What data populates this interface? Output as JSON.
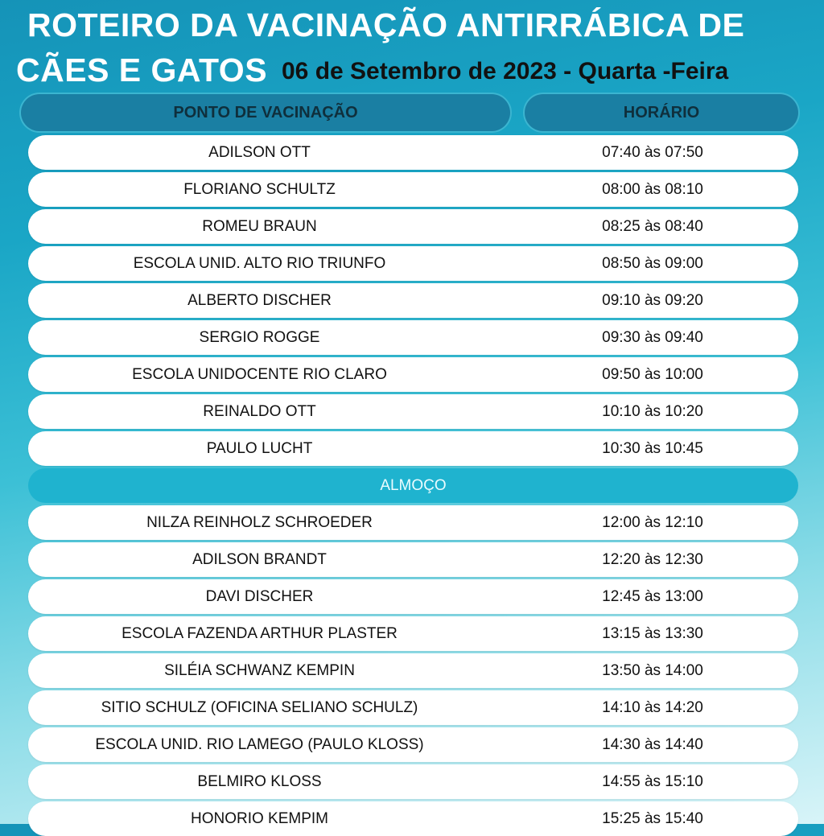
{
  "header": {
    "title_line1": "ROTEIRO DA VACINAÇÃO ANTIRRÁBICA DE",
    "title_line2": "CÃES E GATOS",
    "date": "06 de Setembro de 2023 - Quarta -Feira"
  },
  "table": {
    "col_location": "PONTO DE VACINAÇÃO",
    "col_time": "HORÁRIO",
    "morning": [
      {
        "name": "ADILSON OTT",
        "time": "07:40 às 07:50"
      },
      {
        "name": "FLORIANO SCHULTZ",
        "time": "08:00 às 08:10"
      },
      {
        "name": "ROMEU BRAUN",
        "time": "08:25 às 08:40"
      },
      {
        "name": "ESCOLA UNID. ALTO RIO TRIUNFO",
        "time": "08:50 às 09:00"
      },
      {
        "name": "ALBERTO DISCHER",
        "time": "09:10 às 09:20"
      },
      {
        "name": "SERGIO ROGGE",
        "time": "09:30 às 09:40"
      },
      {
        "name": "ESCOLA UNIDOCENTE RIO CLARO",
        "time": "09:50 às 10:00"
      },
      {
        "name": "REINALDO OTT",
        "time": "10:10 às 10:20"
      },
      {
        "name": "PAULO LUCHT",
        "time": "10:30 às 10:45"
      }
    ],
    "lunch_label": "ALMOÇO",
    "afternoon": [
      {
        "name": "NILZA REINHOLZ SCHROEDER",
        "time": "12:00 às 12:10"
      },
      {
        "name": "ADILSON BRANDT",
        "time": "12:20 às 12:30"
      },
      {
        "name": "DAVI DISCHER",
        "time": "12:45 às 13:00"
      },
      {
        "name": "ESCOLA FAZENDA ARTHUR PLASTER",
        "time": "13:15 às 13:30"
      },
      {
        "name": "SILÉIA SCHWANZ KEMPIN",
        "time": "13:50 às 14:00"
      },
      {
        "name": "SITIO SCHULZ (OFICINA SELIANO SCHULZ)",
        "time": "14:10 às 14:20"
      },
      {
        "name": "ESCOLA UNID. RIO LAMEGO (PAULO KLOSS)",
        "time": "14:30 às 14:40"
      },
      {
        "name": "BELMIRO KLOSS",
        "time": "14:55 às 15:10"
      },
      {
        "name": "HONORIO KEMPIM",
        "time": "15:25 às 15:40"
      }
    ]
  }
}
